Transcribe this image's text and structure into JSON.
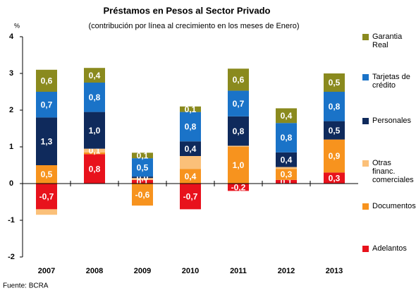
{
  "chart_data": {
    "type": "bar",
    "stacked": true,
    "title": "Préstamos en Pesos al Sector Privado",
    "subtitle": "(contribución por línea al crecimiento en los meses de Enero)",
    "y_label": "%",
    "source": "Fuente: BCRA",
    "categories": [
      "2007",
      "2008",
      "2009",
      "2010",
      "2011",
      "2012",
      "2013"
    ],
    "series": [
      {
        "name": "Adelantos",
        "color": "#e8121c",
        "values": [
          -0.7,
          0.8,
          0.1,
          -0.7,
          -0.2,
          0.1,
          0.3
        ],
        "value_labels": [
          "-0,7",
          "0,8",
          "0,1",
          "-0,7",
          "-0,2",
          "0,1",
          "0,3"
        ]
      },
      {
        "name": "Documentos",
        "color": "#f7931e",
        "values": [
          0.5,
          0.05,
          -0.6,
          0.4,
          1.0,
          0.3,
          0.9
        ],
        "value_labels": [
          "0,5",
          null,
          "-0,6",
          "0,4",
          "1,0",
          "0,3",
          "0,9"
        ]
      },
      {
        "name": "Otras financ. comerciales",
        "color": "#fbc079",
        "values": [
          -0.15,
          0.1,
          0.05,
          0.35,
          0.03,
          0.05,
          0
        ],
        "value_labels": [
          null,
          "0,1",
          null,
          null,
          null,
          null,
          null
        ]
      },
      {
        "name": "Personales",
        "color": "#0f2a5c",
        "values": [
          1.3,
          1.0,
          0.04,
          0.4,
          0.8,
          0.4,
          0.5
        ],
        "value_labels": [
          "1,3",
          "1,0",
          "0,0",
          "0,4",
          "0,8",
          "0,4",
          "0,5"
        ]
      },
      {
        "name": "Tarjetas de crédito",
        "color": "#1a73c8",
        "values": [
          0.7,
          0.8,
          0.5,
          0.8,
          0.7,
          0.8,
          0.8
        ],
        "value_labels": [
          "0,7",
          "0,8",
          "0,5",
          "0,8",
          "0,7",
          "0,8",
          "0,8"
        ]
      },
      {
        "name": "Garantia Real",
        "color": "#8a8a1e",
        "values": [
          0.6,
          0.4,
          0.15,
          0.15,
          0.6,
          0.4,
          0.5
        ],
        "value_labels": [
          "0,6",
          "0,4",
          "0,1",
          "0,1",
          "0,6",
          "0,4",
          "0,5"
        ]
      }
    ],
    "ylim": [
      -2,
      4
    ],
    "yticks": [
      -2,
      -1,
      0,
      1,
      2,
      3,
      4
    ]
  }
}
